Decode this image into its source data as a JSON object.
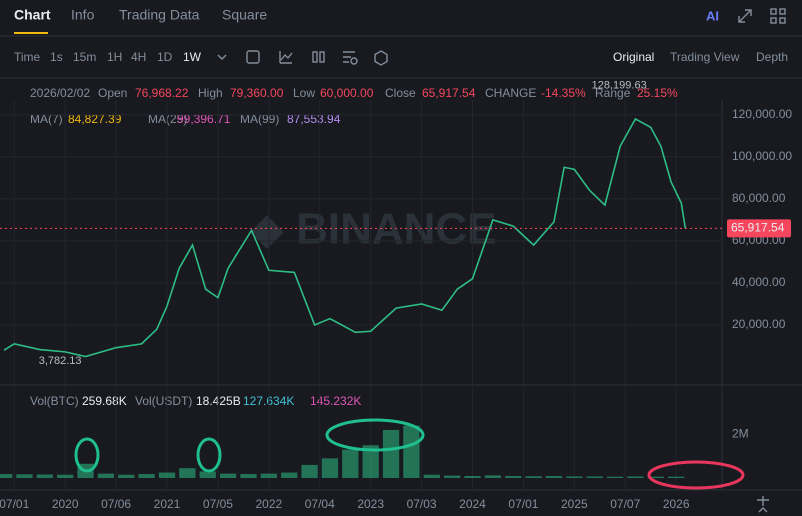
{
  "tabs": [
    "Chart",
    "Info",
    "Trading Data",
    "Square"
  ],
  "toolbar": {
    "intervals": [
      "Time",
      "1s",
      "15m",
      "1H",
      "4H",
      "1D",
      "1W"
    ],
    "ai": "AI",
    "views": [
      "Original",
      "Trading View",
      "Depth"
    ]
  },
  "info_bar": {
    "date": "2026/02/02",
    "items": [
      {
        "label": "Open",
        "value": "76,968.22"
      },
      {
        "label": "High",
        "value": "79,360.00"
      },
      {
        "label": "Low",
        "value": "60,000.00"
      },
      {
        "label": "Close",
        "value": "65,917.54"
      },
      {
        "label": "CHANGE",
        "value": "-14.35%"
      },
      {
        "label": "Range",
        "value": "25.15%"
      }
    ]
  },
  "ma_legend": [
    {
      "name": "MA(7)",
      "value": "84,827.39",
      "color": "#f0b90b"
    },
    {
      "name": "MA(25)",
      "value": "99,396.71",
      "color": "#e056b8"
    },
    {
      "name": "MA(99)",
      "value": "87,553.94",
      "color": "#b38cf0"
    }
  ],
  "vol_legend": [
    {
      "name": "Vol(BTC)",
      "value": "259.68K",
      "color": "#eaecef"
    },
    {
      "name": "Vol(USDT)",
      "value": "18.425B",
      "color": "#eaecef"
    },
    {
      "name": "",
      "value": "127.634K",
      "color": "#3fc1d5"
    },
    {
      "name": "",
      "value": "145.232K",
      "color": "#e056b8"
    }
  ],
  "chart_data": [
    {
      "type": "line",
      "color": "#2ebd85",
      "x": [
        2019.4,
        2019.5,
        2019.75,
        2020.0,
        2020.2,
        2020.5,
        2020.75,
        2020.9,
        2021.0,
        2021.12,
        2021.25,
        2021.38,
        2021.5,
        2021.6,
        2021.83,
        2022.0,
        2022.25,
        2022.45,
        2022.6,
        2022.85,
        2023.0,
        2023.25,
        2023.5,
        2023.7,
        2023.85,
        2024.0,
        2024.2,
        2024.4,
        2024.6,
        2024.8,
        2024.9,
        2025.0,
        2025.15,
        2025.3,
        2025.45,
        2025.6,
        2025.75,
        2025.85,
        2025.95,
        2026.05,
        2026.09
      ],
      "values": [
        8000,
        11000,
        8300,
        7200,
        5000,
        9200,
        11000,
        18000,
        29000,
        47000,
        58000,
        37000,
        33000,
        47000,
        65000,
        46000,
        45000,
        20000,
        23000,
        16500,
        17000,
        28000,
        30000,
        27000,
        37000,
        42000,
        70000,
        67000,
        58000,
        69000,
        95000,
        94000,
        84000,
        77000,
        105000,
        118000,
        114000,
        105000,
        88000,
        78000,
        65917.54
      ],
      "xlim": [
        2019.36,
        2026.45
      ],
      "ylim": [
        0,
        127000
      ],
      "xticks": [
        {
          "value": 2019.5,
          "label": "07/01"
        },
        2020,
        {
          "value": 2020.5,
          "label": "07/06"
        },
        2021,
        {
          "value": 2021.5,
          "label": "07/05"
        },
        2022,
        {
          "value": 2022.5,
          "label": "07/04"
        },
        2023,
        {
          "value": 2023.5,
          "label": "07/03"
        },
        2024,
        {
          "value": 2024.5,
          "label": "07/01"
        },
        2025,
        {
          "value": 2025.5,
          "label": "07/07"
        },
        2026
      ],
      "yticks": [
        {
          "value": 20000,
          "label": "20,000.00"
        },
        {
          "value": 40000,
          "label": "40,000.00"
        },
        {
          "value": 60000,
          "label": "60,000.00"
        },
        {
          "value": 80000,
          "label": "80,000.00"
        },
        {
          "value": 100000,
          "label": "100,000.00"
        },
        {
          "value": 120000,
          "label": "120,000.00"
        }
      ],
      "last_price": {
        "value": 65917.54,
        "label": "65,917.54"
      },
      "annotations": [
        {
          "text": "128,199.63",
          "x": 2025.75,
          "y": 128199.63
        },
        {
          "text": "3,782.13",
          "x": 2020.2,
          "y": 3782.13
        }
      ]
    },
    {
      "type": "bar",
      "color": "#2ebd85",
      "x": [
        2019.4,
        2019.6,
        2019.8,
        2020.0,
        2020.2,
        2020.4,
        2020.6,
        2020.8,
        2021.0,
        2021.2,
        2021.4,
        2021.6,
        2021.8,
        2022.0,
        2022.2,
        2022.4,
        2022.6,
        2022.8,
        2023.0,
        2023.2,
        2023.4,
        2023.6,
        2023.8,
        2024.0,
        2024.2,
        2024.4,
        2024.6,
        2024.8,
        2025.0,
        2025.2,
        2025.4,
        2025.6,
        2025.8,
        2026.0
      ],
      "values": [
        180000,
        170000,
        160000,
        150000,
        650000,
        200000,
        150000,
        180000,
        250000,
        450000,
        300000,
        200000,
        180000,
        200000,
        250000,
        600000,
        900000,
        1300000,
        1500000,
        2200000,
        2400000,
        150000,
        110000,
        90000,
        120000,
        90000,
        80000,
        90000,
        70000,
        70000,
        60000,
        70000,
        60000,
        60000
      ],
      "xlim": [
        2019.36,
        2026.45
      ],
      "ylim": [
        0,
        3800000
      ],
      "yticks": [
        {
          "value": 2000000,
          "label": "2M"
        }
      ]
    }
  ]
}
